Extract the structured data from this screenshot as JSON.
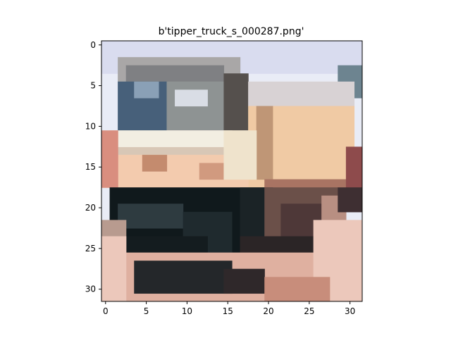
{
  "title": "b'tipper_truck_s_000287.png'",
  "image": {
    "subject": "tipper truck",
    "grid_size": [
      32,
      32
    ],
    "palette": {
      "sky": "#e9ecf6",
      "sky_haze": "#d9dcef",
      "cab_window": "#47607a",
      "cab_window_light": "#8aa0b6",
      "cab_body": "#d8c7b6",
      "cab_white": "#f2eee2",
      "bed_tan": "#f0caa4",
      "bed_shadow": "#bf9676",
      "bed_rust": "#a97463",
      "chassis_dark": "#10191c",
      "wheel_dark": "#1f2a2e",
      "ground_pink": "#dfb0a0",
      "ground_light": "#ecc8bb",
      "rock_dark": "#3e2f32"
    }
  },
  "axes": {
    "x_ticks": [
      "0",
      "5",
      "10",
      "15",
      "20",
      "25",
      "30"
    ],
    "y_ticks": [
      "0",
      "5",
      "10",
      "15",
      "20",
      "25",
      "30"
    ],
    "x_range": [
      -0.5,
      31.5
    ],
    "y_range": [
      -0.5,
      31.5
    ],
    "y_inverted": true
  }
}
